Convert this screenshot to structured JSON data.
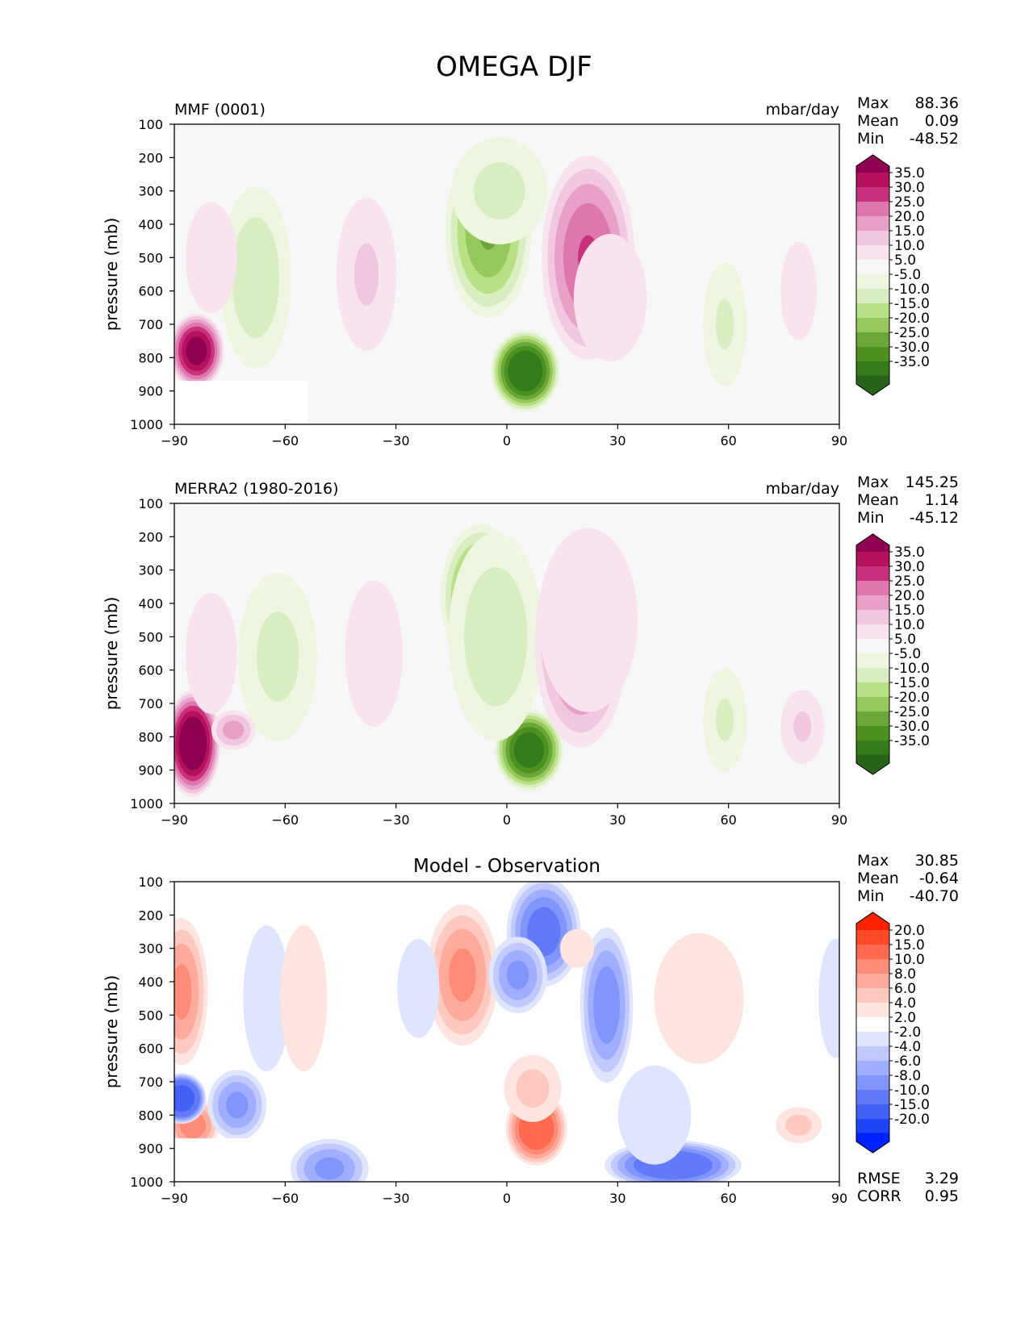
{
  "figure": {
    "title": "OMEGA DJF"
  },
  "chart_data": [
    {
      "type": "heatmap",
      "name": "mmf",
      "title_left": "MMF (0001)",
      "title_center": "",
      "units": "mbar/day",
      "ylabel": "pressure (mb)",
      "xlabel": "",
      "xlim": [
        -90,
        90
      ],
      "ylim": [
        1000,
        100
      ],
      "xticks": [
        "−90",
        "−60",
        "−30",
        "0",
        "30",
        "60",
        "90"
      ],
      "yticks": [
        "100",
        "200",
        "300",
        "400",
        "500",
        "600",
        "700",
        "800",
        "900",
        "1000"
      ],
      "stats": [
        {
          "label": "Max",
          "value": "88.36"
        },
        {
          "label": "Mean",
          "value": "0.09"
        },
        {
          "label": "Min",
          "value": "-48.52"
        }
      ],
      "colorbar_labels": [
        "35.0",
        "30.0",
        "25.0",
        "20.0",
        "15.0",
        "10.0",
        "5.0",
        "-5.0",
        "-10.0",
        "-15.0",
        "-20.0",
        "-25.0",
        "-30.0",
        "-35.0"
      ],
      "colorbar_colors": [
        "#8e0152",
        "#b5115f",
        "#c9307e",
        "#de77ae",
        "#e8a0c9",
        "#f1c6e0",
        "#f9e3ef",
        "#f7f7f7",
        "#eef6e0",
        "#d7eec0",
        "#b8e186",
        "#95c95d",
        "#6ba63b",
        "#4d9221",
        "#357a1b",
        "#276419"
      ],
      "blobs": [
        {
          "lat": 5,
          "p": 840,
          "rx": 5,
          "rp": 120,
          "v": -45
        },
        {
          "lat": -5,
          "p": 420,
          "rx": 8,
          "rp": 280,
          "v": -26
        },
        {
          "lat": -2,
          "p": 300,
          "rx": 12,
          "rp": 200,
          "v": -12
        },
        {
          "lat": 22,
          "p": 500,
          "rx": 9,
          "rp": 330,
          "v": 26
        },
        {
          "lat": 28,
          "p": 620,
          "rx": 9,
          "rp": 260,
          "v": 10
        },
        {
          "lat": -68,
          "p": 560,
          "rx": 7,
          "rp": 330,
          "v": -14
        },
        {
          "lat": -38,
          "p": 550,
          "rx": 6,
          "rp": 300,
          "v": 11
        },
        {
          "lat": -84,
          "p": 780,
          "rx": 3,
          "rp": 110,
          "v": 40
        },
        {
          "lat": -80,
          "p": 500,
          "rx": 8,
          "rp": 300,
          "v": 7
        },
        {
          "lat": 59,
          "p": 700,
          "rx": 3,
          "rp": 240,
          "v": -11
        },
        {
          "lat": 79,
          "p": 600,
          "rx": 3,
          "rp": 230,
          "v": 8
        }
      ],
      "masks": [
        {
          "lat0": -90,
          "lat1": -54,
          "p0": 870,
          "p1": 1000
        }
      ]
    },
    {
      "type": "heatmap",
      "name": "merra2",
      "title_left": "MERRA2 (1980-2016)",
      "title_center": "",
      "units": "mbar/day",
      "ylabel": "pressure (mb)",
      "xlabel": "",
      "xlim": [
        -90,
        90
      ],
      "ylim": [
        1000,
        100
      ],
      "xticks": [
        "−90",
        "−60",
        "−30",
        "0",
        "30",
        "60",
        "90"
      ],
      "yticks": [
        "100",
        "200",
        "300",
        "400",
        "500",
        "600",
        "700",
        "800",
        "900",
        "1000"
      ],
      "stats": [
        {
          "label": "Max",
          "value": "145.25"
        },
        {
          "label": "Mean",
          "value": "1.14"
        },
        {
          "label": "Min",
          "value": "-45.12"
        }
      ],
      "colorbar_labels": [
        "35.0",
        "30.0",
        "25.0",
        "20.0",
        "15.0",
        "10.0",
        "5.0",
        "-5.0",
        "-10.0",
        "-15.0",
        "-20.0",
        "-25.0",
        "-30.0",
        "-35.0"
      ],
      "colorbar_colors": [
        "#8e0152",
        "#b5115f",
        "#c9307e",
        "#de77ae",
        "#e8a0c9",
        "#f1c6e0",
        "#f9e3ef",
        "#f7f7f7",
        "#eef6e0",
        "#d7eec0",
        "#b8e186",
        "#95c95d",
        "#6ba63b",
        "#4d9221",
        "#357a1b",
        "#276419"
      ],
      "blobs": [
        {
          "lat": 6,
          "p": 840,
          "rx": 5,
          "rp": 120,
          "v": -42
        },
        {
          "lat": -7,
          "p": 380,
          "rx": 7,
          "rp": 230,
          "v": -28
        },
        {
          "lat": -3,
          "p": 500,
          "rx": 11,
          "rp": 380,
          "v": -14
        },
        {
          "lat": 20,
          "p": 520,
          "rx": 9,
          "rp": 340,
          "v": 24
        },
        {
          "lat": 22,
          "p": 450,
          "rx": 14,
          "rp": 380,
          "v": 10
        },
        {
          "lat": -62,
          "p": 560,
          "rx": 9,
          "rp": 320,
          "v": -12
        },
        {
          "lat": -36,
          "p": 550,
          "rx": 6,
          "rp": 300,
          "v": 10
        },
        {
          "lat": -85,
          "p": 820,
          "rx": 3,
          "rp": 160,
          "v": 45
        },
        {
          "lat": -74,
          "p": 780,
          "rx": 2,
          "rp": 60,
          "v": 18
        },
        {
          "lat": -80,
          "p": 550,
          "rx": 8,
          "rp": 330,
          "v": 7
        },
        {
          "lat": 59,
          "p": 750,
          "rx": 3,
          "rp": 200,
          "v": -11
        },
        {
          "lat": 80,
          "p": 770,
          "rx": 3,
          "rp": 140,
          "v": 11
        }
      ],
      "masks": []
    },
    {
      "type": "heatmap",
      "name": "diff",
      "title_left": "",
      "title_center": "Model - Observation",
      "units": "",
      "ylabel": "pressure (mb)",
      "xlabel": "",
      "xlim": [
        -90,
        90
      ],
      "ylim": [
        1000,
        100
      ],
      "xticks": [
        "−90",
        "−60",
        "−30",
        "0",
        "30",
        "60",
        "90"
      ],
      "yticks": [
        "100",
        "200",
        "300",
        "400",
        "500",
        "600",
        "700",
        "800",
        "900",
        "1000"
      ],
      "stats": [
        {
          "label": "Max",
          "value": "30.85"
        },
        {
          "label": "Mean",
          "value": "-0.64"
        },
        {
          "label": "Min",
          "value": "-40.70"
        }
      ],
      "extra_stats": [
        {
          "label": "RMSE",
          "value": "3.29"
        },
        {
          "label": "CORR",
          "value": "0.95"
        }
      ],
      "colorbar_labels": [
        "20.0",
        "15.0",
        "10.0",
        "8.0",
        "6.0",
        "4.0",
        "2.0",
        "-2.0",
        "-4.0",
        "-6.0",
        "-8.0",
        "-10.0",
        "-15.0",
        "-20.0"
      ],
      "colorbar_colors": [
        "#ff2200",
        "#ff4a2a",
        "#ff6a50",
        "#ff8c78",
        "#ffab9c",
        "#ffc9bf",
        "#ffe4df",
        "#ffffff",
        "#dfe4ff",
        "#c0caff",
        "#a0aeff",
        "#8195ff",
        "#617af8",
        "#4461f6",
        "#1f45f6",
        "#0022ff"
      ],
      "blobs": [
        {
          "lat": 8,
          "p": 840,
          "rx": 4,
          "rp": 110,
          "v": 14
        },
        {
          "lat": 7,
          "p": 720,
          "rx": 5,
          "rp": 120,
          "v": 5
        },
        {
          "lat": -12,
          "p": 380,
          "rx": 6,
          "rp": 230,
          "v": 9
        },
        {
          "lat": 10,
          "p": 250,
          "rx": 6,
          "rp": 170,
          "v": -12
        },
        {
          "lat": 3,
          "p": 380,
          "rx": 4,
          "rp": 120,
          "v": -9
        },
        {
          "lat": 27,
          "p": 470,
          "rx": 3,
          "rp": 250,
          "v": -10
        },
        {
          "lat": 45,
          "p": 950,
          "rx": 15,
          "rp": 70,
          "v": -14
        },
        {
          "lat": 40,
          "p": 800,
          "rx": 9,
          "rp": 200,
          "v": -4
        },
        {
          "lat": 52,
          "p": 450,
          "rx": 16,
          "rp": 330,
          "v": 3
        },
        {
          "lat": -88,
          "p": 430,
          "rx": 3,
          "rp": 240,
          "v": 9
        },
        {
          "lat": -85,
          "p": 830,
          "rx": 3,
          "rp": 80,
          "v": 10
        },
        {
          "lat": -88,
          "p": 750,
          "rx": 2,
          "rp": 70,
          "v": -20
        },
        {
          "lat": -73,
          "p": 770,
          "rx": 4,
          "rp": 110,
          "v": -9
        },
        {
          "lat": -65,
          "p": 450,
          "rx": 4,
          "rp": 300,
          "v": -4
        },
        {
          "lat": -55,
          "p": 450,
          "rx": 4,
          "rp": 300,
          "v": 4
        },
        {
          "lat": -48,
          "p": 960,
          "rx": 7,
          "rp": 90,
          "v": -9
        },
        {
          "lat": -24,
          "p": 420,
          "rx": 3,
          "rp": 200,
          "v": -4
        },
        {
          "lat": 19,
          "p": 300,
          "rx": 3,
          "rp": 90,
          "v": 3
        },
        {
          "lat": 79,
          "p": 830,
          "rx": 3,
          "rp": 60,
          "v": 5
        },
        {
          "lat": 89,
          "p": 450,
          "rx": 3,
          "rp": 300,
          "v": -3
        }
      ],
      "masks": [
        {
          "lat0": -90,
          "lat1": -59,
          "p0": 870,
          "p1": 1000
        }
      ]
    }
  ]
}
